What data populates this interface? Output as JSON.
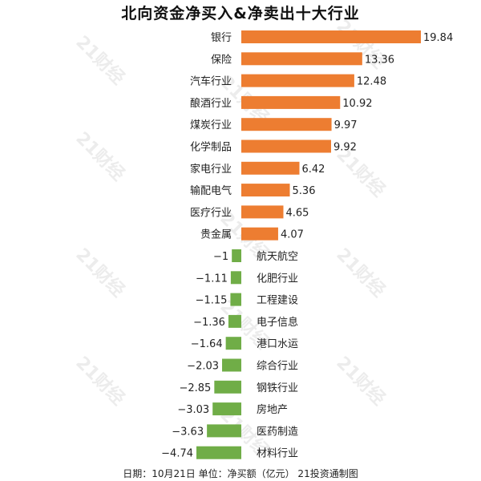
{
  "title": "北向资金净买入&净卖出十大行业",
  "footer": "日期：10月21日 单位：净买额（亿元） 21投资通制图",
  "watermark": "21财经",
  "colors": {
    "positive": "#ED7D31",
    "negative": "#70AD47"
  },
  "chart_data": {
    "type": "bar",
    "orientation": "horizontal",
    "title": "北向资金净买入&净卖出十大行业",
    "categories": [
      "银行",
      "保险",
      "汽车行业",
      "酿酒行业",
      "煤炭行业",
      "化学制品",
      "家电行业",
      "输配电气",
      "医疗行业",
      "贵金属",
      "航天航空",
      "化肥行业",
      "工程建设",
      "电子信息",
      "港口水运",
      "综合行业",
      "钢铁行业",
      "房地产",
      "医药制造",
      "材料行业"
    ],
    "values": [
      19.84,
      13.36,
      12.48,
      10.92,
      9.97,
      9.92,
      6.42,
      5.36,
      4.65,
      4.07,
      -1,
      -1.11,
      -1.15,
      -1.36,
      -1.64,
      -2.03,
      -2.85,
      -3.03,
      -3.63,
      -4.74
    ],
    "value_labels": [
      "19.84",
      "13.36",
      "12.48",
      "10.92",
      "9.97",
      "9.92",
      "6.42",
      "5.36",
      "4.65",
      "4.07",
      "−1",
      "−1.11",
      "−1.15",
      "−1.36",
      "−1.64",
      "−2.03",
      "−2.85",
      "−3.03",
      "−3.63",
      "−4.74"
    ],
    "xlim": [
      -4.74,
      19.84
    ],
    "grid": false,
    "legend": "none"
  }
}
